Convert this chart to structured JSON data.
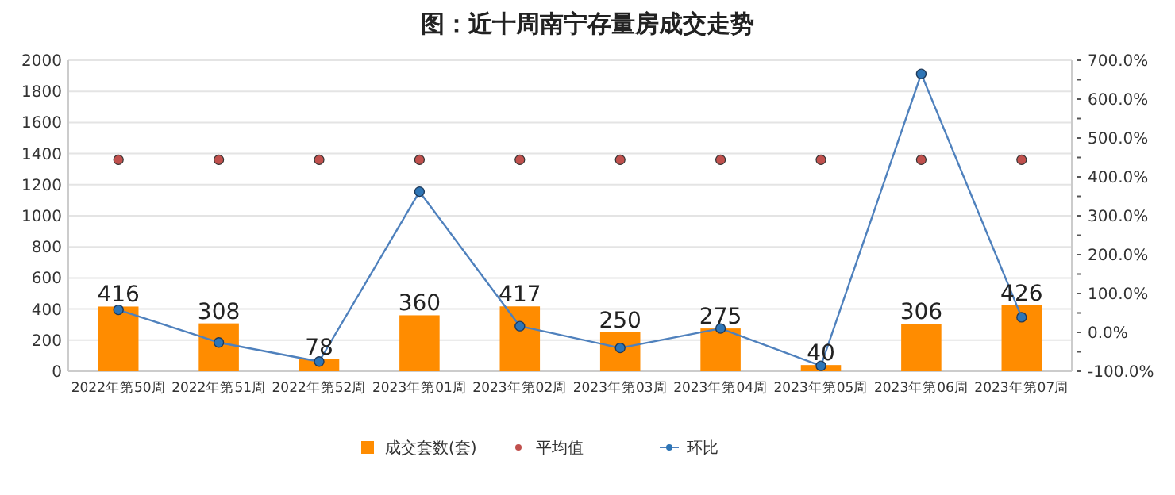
{
  "chart_data": {
    "type": "bar",
    "title": "图：近十周南宁存量房成交走势",
    "categories": [
      "2022年第50周",
      "2022年第51周",
      "2022年第52周",
      "2023年第01周",
      "2023年第02周",
      "2023年第03周",
      "2023年第04周",
      "2023年第05周",
      "2023年第06周",
      "2023年第07周"
    ],
    "series": [
      {
        "name": "成交套数(套)",
        "color": "#ff8c00",
        "values": [
          416,
          308,
          78,
          360,
          417,
          250,
          275,
          40,
          306,
          426
        ],
        "value_labels": [
          "416",
          "308",
          "78",
          "360",
          "417",
          "250",
          "275",
          "40",
          "306",
          "426"
        ]
      },
      {
        "name": "平均值",
        "type": "scatter",
        "color": "#c0504d",
        "values": [
          1360,
          1360,
          1360,
          1360,
          1360,
          1360,
          1360,
          1360,
          1360,
          1360
        ]
      },
      {
        "name": "环比",
        "type": "line",
        "axis": "y2",
        "color": "#4f81bd",
        "marker": "circle",
        "values": [
          58,
          -26,
          -75,
          362,
          16,
          -40,
          10,
          -86,
          665,
          39
        ]
      }
    ],
    "ylim": [
      0,
      2000
    ],
    "yticks": [
      0,
      200,
      400,
      600,
      800,
      1000,
      1200,
      1400,
      1600,
      1800,
      2000
    ],
    "y2lim": [
      -100,
      700
    ],
    "y2ticks": [
      {
        "value": -100,
        "label": "-100.0%"
      },
      {
        "value": -50,
        "label": null
      },
      {
        "value": 0,
        "label": "0.0%"
      },
      {
        "value": 50,
        "label": null
      },
      {
        "value": 100,
        "label": "100.0%"
      },
      {
        "value": 150,
        "label": null
      },
      {
        "value": 200,
        "label": "200.0%"
      },
      {
        "value": 250,
        "label": null
      },
      {
        "value": 300,
        "label": "300.0%"
      },
      {
        "value": 350,
        "label": null
      },
      {
        "value": 400,
        "label": "400.0%"
      },
      {
        "value": 450,
        "label": null
      },
      {
        "value": 500,
        "label": "500.0%"
      },
      {
        "value": 550,
        "label": null
      },
      {
        "value": 600,
        "label": "600.0%"
      },
      {
        "value": 650,
        "label": null
      },
      {
        "value": 700,
        "label": "700.0%"
      }
    ],
    "grid": "y",
    "legend": "bottom"
  }
}
